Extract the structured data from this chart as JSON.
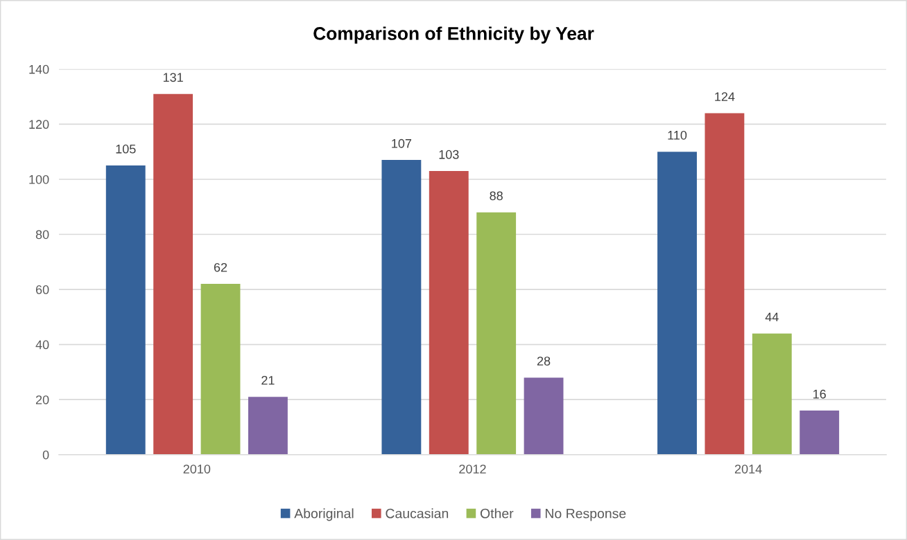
{
  "chart_data": {
    "type": "bar",
    "title": "Comparison of Ethnicity by Year",
    "categories": [
      "2010",
      "2012",
      "2014"
    ],
    "series": [
      {
        "name": "Aboriginal",
        "color": "#35629a",
        "values": [
          105,
          107,
          110
        ]
      },
      {
        "name": "Caucasian",
        "color": "#c3504d",
        "values": [
          131,
          103,
          124
        ]
      },
      {
        "name": "Other",
        "color": "#9bbb57",
        "values": [
          62,
          88,
          44
        ]
      },
      {
        "name": "No Response",
        "color": "#8066a3",
        "values": [
          21,
          28,
          16
        ]
      }
    ],
    "ylim": [
      0,
      140
    ],
    "yticks": [
      0,
      20,
      40,
      60,
      80,
      100,
      120,
      140
    ],
    "grid": "y",
    "legend": "bottom",
    "data_labels": true
  }
}
